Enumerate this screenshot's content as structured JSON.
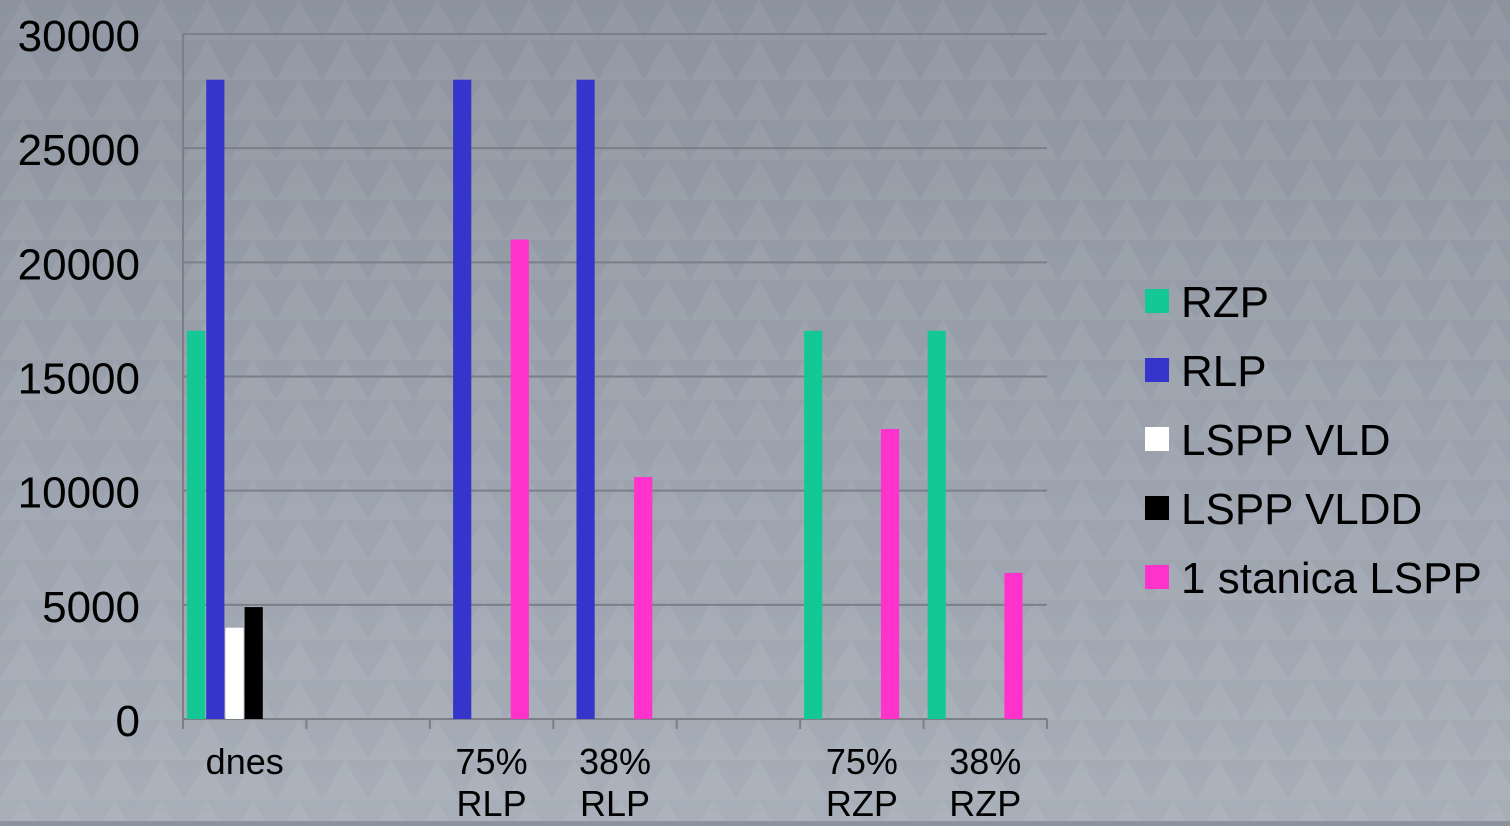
{
  "chart_data": {
    "type": "bar",
    "categories": [
      "dnes",
      "",
      "75%\nRLP",
      "38%\nRLP",
      "",
      "75%\nRZP",
      "38%\nRZP"
    ],
    "ylim": [
      0,
      30000
    ],
    "yticks": [
      0,
      5000,
      10000,
      15000,
      20000,
      25000,
      30000
    ],
    "grid": true,
    "legend_position": "right",
    "series": [
      {
        "name": "RZP",
        "color": "#14c896",
        "values": [
          17000,
          null,
          null,
          null,
          null,
          17000,
          17000
        ]
      },
      {
        "name": "RLP",
        "color": "#3535cc",
        "values": [
          28000,
          null,
          28000,
          28000,
          null,
          null,
          null
        ]
      },
      {
        "name": "LSPP VLD",
        "color": "#ffffff",
        "values": [
          4000,
          null,
          null,
          null,
          null,
          null,
          null
        ]
      },
      {
        "name": "LSPP VLDD",
        "color": "#000000",
        "values": [
          4900,
          null,
          null,
          null,
          null,
          null,
          null
        ]
      },
      {
        "name": "1 stanica LSPP",
        "color": "#ff33cc",
        "values": [
          null,
          null,
          21000,
          10600,
          null,
          12700,
          6400
        ]
      }
    ]
  }
}
